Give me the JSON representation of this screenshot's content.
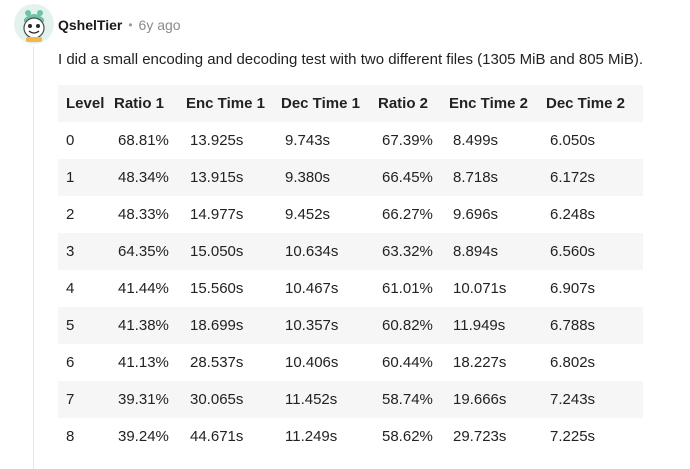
{
  "post": {
    "username": "QshelTier",
    "separator": "•",
    "timestamp": "6y ago",
    "avatar_icon": "cartoon-avatar-icon",
    "text": "I did a small encoding and decoding test with two different files (1305 MiB and 805 MiB)."
  },
  "table": {
    "headers": [
      "Level",
      "Ratio 1",
      "Enc Time 1",
      "Dec Time 1",
      "Ratio 2",
      "Enc Time 2",
      "Dec Time 2"
    ],
    "rows": [
      [
        "0",
        "68.81%",
        "13.925s",
        "9.743s",
        "67.39%",
        "8.499s",
        "6.050s"
      ],
      [
        "1",
        "48.34%",
        "13.915s",
        "9.380s",
        "66.45%",
        "8.718s",
        "6.172s"
      ],
      [
        "2",
        "48.33%",
        "14.977s",
        "9.452s",
        "66.27%",
        "9.696s",
        "6.248s"
      ],
      [
        "3",
        "64.35%",
        "15.050s",
        "10.634s",
        "63.32%",
        "8.894s",
        "6.560s"
      ],
      [
        "4",
        "41.44%",
        "15.560s",
        "10.467s",
        "61.01%",
        "10.071s",
        "6.907s"
      ],
      [
        "5",
        "41.38%",
        "18.699s",
        "10.357s",
        "60.82%",
        "11.949s",
        "6.788s"
      ],
      [
        "6",
        "41.13%",
        "28.537s",
        "10.406s",
        "60.44%",
        "18.227s",
        "6.802s"
      ],
      [
        "7",
        "39.31%",
        "30.065s",
        "11.452s",
        "58.74%",
        "19.666s",
        "7.243s"
      ],
      [
        "8",
        "39.24%",
        "44.671s",
        "11.249s",
        "58.62%",
        "29.723s",
        "7.225s"
      ]
    ]
  }
}
